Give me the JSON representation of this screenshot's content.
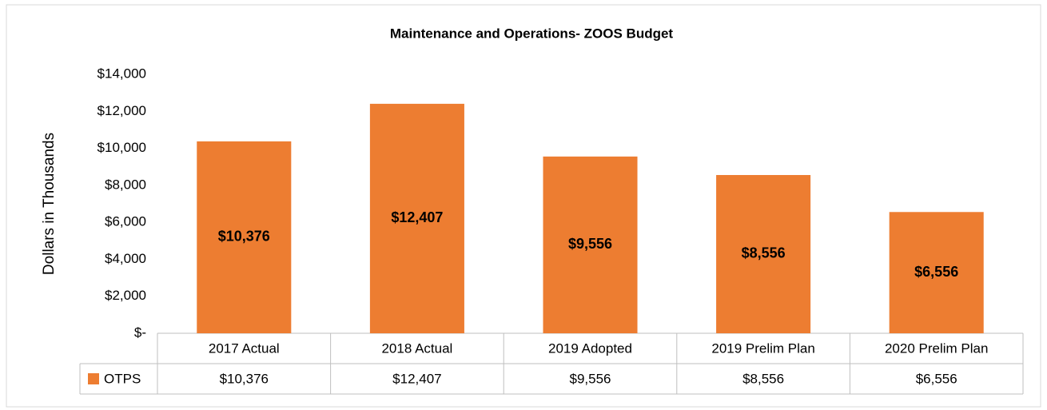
{
  "chart_data": {
    "type": "bar",
    "title": "Maintenance and Operations- ZOOS Budget",
    "y_axis_label": "Dollars in Thousands",
    "categories": [
      "2017 Actual",
      "2018 Actual",
      "2019 Adopted",
      "2019 Prelim Plan",
      "2020 Prelim Plan"
    ],
    "series": [
      {
        "name": "OTPS",
        "color": "#ed7d31",
        "values": [
          10376,
          12407,
          9556,
          8556,
          6556
        ],
        "value_labels": [
          "$10,376",
          "$12,407",
          "$9,556",
          "$8,556",
          "$6,556"
        ]
      }
    ],
    "ylim": [
      0,
      14000
    ],
    "yticks": [
      {
        "value": 0,
        "label": "$-"
      },
      {
        "value": 2000,
        "label": "$2,000"
      },
      {
        "value": 4000,
        "label": "$4,000"
      },
      {
        "value": 6000,
        "label": "$6,000"
      },
      {
        "value": 8000,
        "label": "$8,000"
      },
      {
        "value": 10000,
        "label": "$10,000"
      },
      {
        "value": 12000,
        "label": "$12,000"
      },
      {
        "value": 14000,
        "label": "$14,000"
      }
    ],
    "grid": false
  }
}
